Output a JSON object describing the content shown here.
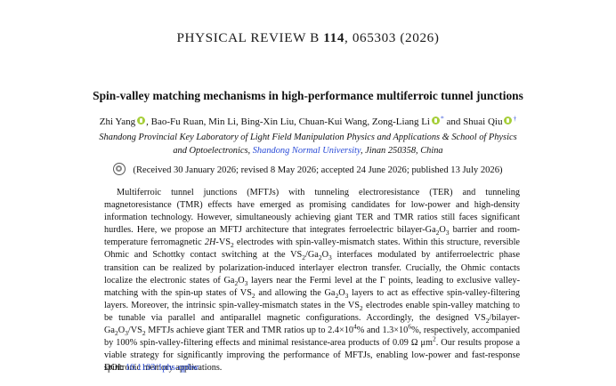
{
  "header": {
    "journal": "PHYSICAL REVIEW B",
    "volume": "114",
    "citation": ", 065303 (2026)"
  },
  "title": "Spin-valley matching mechanisms in high-performance multiferroic tunnel junctions",
  "authors": [
    {
      "name": "Zhi Yang",
      "orcid": true,
      "mark": "",
      "sep": ", "
    },
    {
      "name": "Bao-Fu Ruan",
      "orcid": false,
      "mark": "",
      "sep": ", "
    },
    {
      "name": "Min Li",
      "orcid": false,
      "mark": "",
      "sep": ", "
    },
    {
      "name": "Bing-Xin Liu",
      "orcid": false,
      "mark": "",
      "sep": ", "
    },
    {
      "name": "Chuan-Kui Wang",
      "orcid": false,
      "mark": "",
      "sep": ", "
    },
    {
      "name": "Zong-Liang Li",
      "orcid": true,
      "mark": "*",
      "sep": " and "
    },
    {
      "name": "Shuai Qiu",
      "orcid": true,
      "mark": "†",
      "sep": ""
    }
  ],
  "affiliation": {
    "line1": "Shandong Provincial Key Laboratory of Light Field Manipulation Physics and Applications & School of Physics",
    "line2_pre": "and Optoelectronics, ",
    "university": "Shandong Normal University",
    "line2_post": ", Jinan 250358, China"
  },
  "history": "(Received 30 January 2026; revised 8 May 2026; accepted 24 June 2026; published 13 July 2026)",
  "abstract": [
    {
      "t": "Multiferroic tunnel junctions (MFTJs) with tunneling electroresistance (TER) and tunneling magnetoresistance (TMR) effects have emerged as promising candidates for low-power and high-density information technology. However, simultaneously achieving giant TER and TMR ratios still faces significant hurdles. Here, we propose an MFTJ architecture that integrates ferroelectric bilayer-Ga"
    },
    {
      "t": "2",
      "sub": true
    },
    {
      "t": "O"
    },
    {
      "t": "3",
      "sub": true
    },
    {
      "t": " barrier and room-temperature ferromagnetic "
    },
    {
      "t": "2H",
      "i": true
    },
    {
      "t": "-VS"
    },
    {
      "t": "2",
      "sub": true
    },
    {
      "t": " electrodes with spin-valley-mismatch states. Within this structure, reversible Ohmic and Schottky contact switching at the VS"
    },
    {
      "t": "2",
      "sub": true
    },
    {
      "t": "/Ga"
    },
    {
      "t": "2",
      "sub": true
    },
    {
      "t": "O"
    },
    {
      "t": "3",
      "sub": true
    },
    {
      "t": " interfaces modulated by antiferroelectric phase transition can be realized by polarization-induced interlayer electron transfer. Crucially, the Ohmic contacts localize the electronic states of Ga"
    },
    {
      "t": "2",
      "sub": true
    },
    {
      "t": "O"
    },
    {
      "t": "3",
      "sub": true
    },
    {
      "t": " layers near the Fermi level at the Γ points, leading to exclusive valley-matching with the spin-up states of VS"
    },
    {
      "t": "2",
      "sub": true
    },
    {
      "t": " and allowing the Ga"
    },
    {
      "t": "2",
      "sub": true
    },
    {
      "t": "O"
    },
    {
      "t": "3",
      "sub": true
    },
    {
      "t": " layers to act as effective spin-valley-filtering layers. Moreover, the intrinsic spin-valley-mismatch states in the VS"
    },
    {
      "t": "2",
      "sub": true
    },
    {
      "t": " electrodes enable spin-valley matching to be tunable via parallel and antiparallel magnetic configurations. Accordingly, the designed VS"
    },
    {
      "t": "2",
      "sub": true
    },
    {
      "t": "/bilayer-Ga"
    },
    {
      "t": "2",
      "sub": true
    },
    {
      "t": "O"
    },
    {
      "t": "3",
      "sub": true
    },
    {
      "t": "/VS"
    },
    {
      "t": "2",
      "sub": true
    },
    {
      "t": " MFTJs achieve giant TER and TMR ratios up to 2.4×10"
    },
    {
      "t": "4",
      "sup": true
    },
    {
      "t": "% and 1.3×10"
    },
    {
      "t": "6",
      "sup": true
    },
    {
      "t": "%, respectively, accompanied by 100% spin-valley-filtering effects and minimal resistance-area products of 0.09 Ω μm"
    },
    {
      "t": "2",
      "sup": true
    },
    {
      "t": ". Our results propose a viable strategy for significantly improving the performance of MFTJs, enabling low-power and fast-response spintronic memory applications."
    }
  ],
  "doi": {
    "label": "DOI: ",
    "link": "10.1103/1phs-qpbw"
  }
}
